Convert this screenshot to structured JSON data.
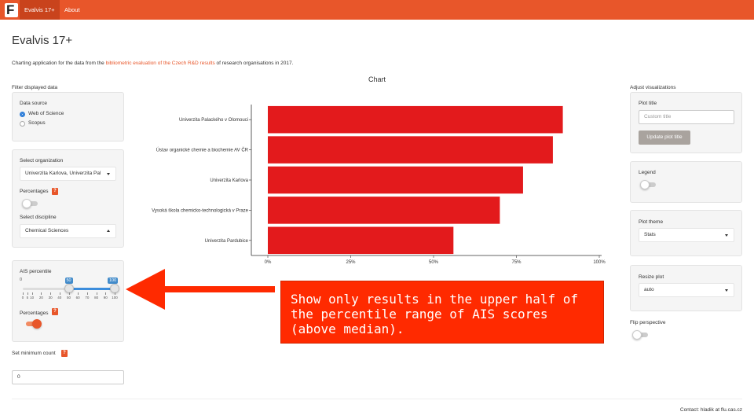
{
  "navbar": {
    "logo": "F",
    "tabs": [
      {
        "label": "Evalvis 17+"
      },
      {
        "label": "About"
      }
    ]
  },
  "page": {
    "title": "Evalvis 17+",
    "description_before": "Charting application for the data from the ",
    "description_link": "bibliometric evaluation of the Czech R&D results",
    "description_after": " of research organisations in 2017."
  },
  "left": {
    "section_title": "Filter displayed data",
    "data_source": {
      "label": "Data source",
      "options": [
        "Web of Science",
        "Scopus"
      ],
      "selected": "Web of Science"
    },
    "organization": {
      "label": "Select organization",
      "value": "Univerzita Karlova, Univerzita Pal"
    },
    "percentages_label": "Percentages",
    "help_badge": "?",
    "discipline": {
      "label": "Select discipline",
      "value": "Chemical Sciences"
    },
    "ais": {
      "label": "AIS percentile",
      "min": "0",
      "from": "50",
      "to": "100",
      "ticks": [
        "0",
        "5",
        "10",
        "20",
        "30",
        "40",
        "50",
        "60",
        "70",
        "80",
        "90",
        "100"
      ],
      "from_value": 50,
      "to_value": 100
    },
    "percentages2_label": "Percentages",
    "min_count": {
      "label": "Set minimum count",
      "value": "0"
    }
  },
  "right": {
    "section_title": "Adjust visualizations",
    "plot_title": {
      "label": "Plot title",
      "placeholder": "Custom title",
      "button": "Update plot title"
    },
    "legend_label": "Legend",
    "theme": {
      "label": "Plot theme",
      "value": "Stats"
    },
    "resize": {
      "label": "Resize plot",
      "value": "auto"
    },
    "flip_label": "Flip perspective"
  },
  "chart_title": "Chart",
  "chart_data": {
    "type": "bar",
    "orientation": "horizontal",
    "categories": [
      "Univerzita Palackého v Olomouci",
      "Ústav organické chemie a biochemie AV ČR",
      "Univerzita Karlova",
      "Vysoká škola chemicko-technologická v Praze",
      "Univerzita Pardubice"
    ],
    "values": [
      89,
      86,
      77,
      70,
      56
    ],
    "x_ticks": [
      "0%",
      "25%",
      "50%",
      "75%",
      "100%"
    ],
    "xlim": [
      0,
      100
    ],
    "bar_color": "#e31a1c"
  },
  "annotation": "Show only results in the upper half of\nthe percentile range of AIS scores\n(above median).",
  "contact": "Contact: hladik at flu.cas.cz",
  "colors": {
    "accent": "#e8562a",
    "annotation": "#ff2a00",
    "slider": "#428bca"
  }
}
